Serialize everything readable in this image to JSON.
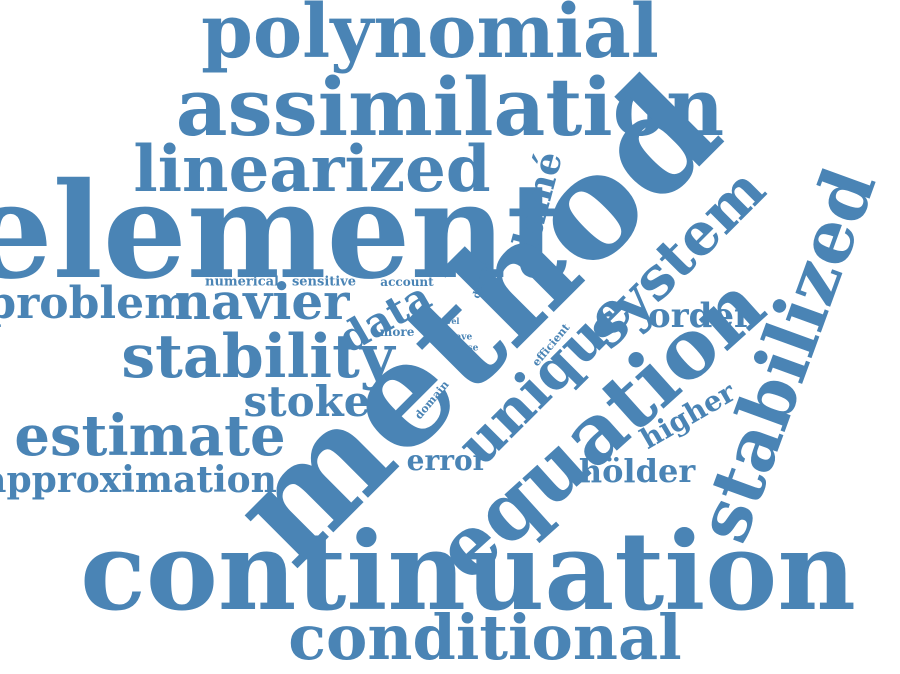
{
  "color": "#4a84b5",
  "words": {
    "polynomial": "polynomial",
    "assimilation": "assimilation",
    "linearized": "linearized",
    "element": "element",
    "lame": "lamé",
    "method": "method",
    "problem": "problem",
    "navier": "navier",
    "numerical": "numerical",
    "sensitive": "sensitive",
    "account": "account",
    "degree": "degree",
    "data": "data",
    "more": "more",
    "level": "level",
    "wave": "wave",
    "noise": "noise",
    "efficient": "efficient",
    "domain": "domain",
    "system": "system",
    "stabilized": "stabilized",
    "order": "order",
    "stability": "stability",
    "unique": "unique",
    "stoke": "stoke",
    "estimate": "estimate",
    "equation": "equation",
    "higher": "higher",
    "error": "error",
    "approximation": "approximation",
    "holder": "hölder",
    "continuation": "continuation",
    "conditional": "conditional"
  }
}
